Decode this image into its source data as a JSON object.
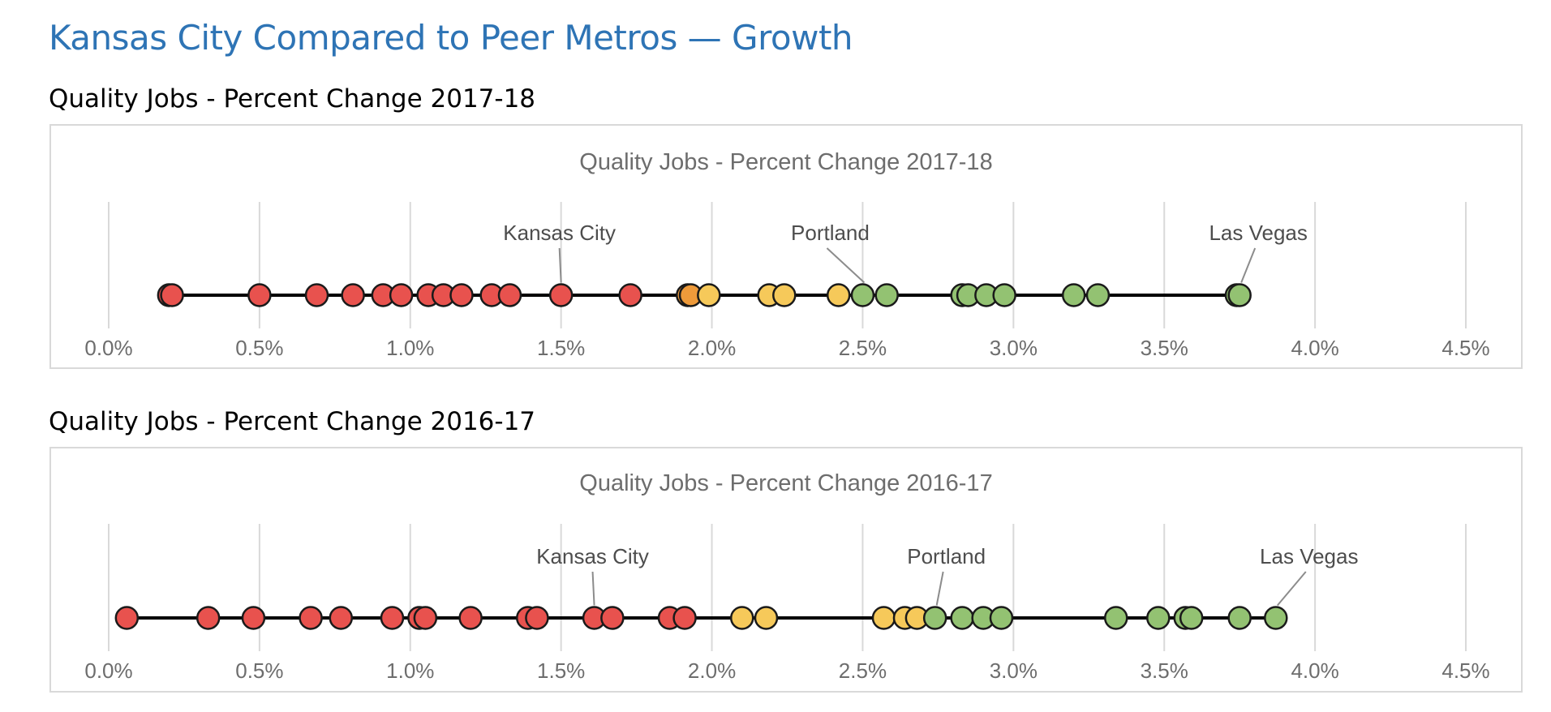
{
  "page": {
    "title": "Kansas City Compared to Peer Metros — Growth"
  },
  "charts": [
    {
      "heading": "Quality Jobs - Percent Change 2017-18"
    },
    {
      "heading": "Quality Jobs - Percent Change 2016-17"
    }
  ],
  "colors": {
    "red": "#E8524E",
    "orange": "#EE9A3A",
    "yellow": "#F6C95A",
    "green": "#93C272",
    "outline": "#1a1a1a",
    "gridline": "#d9d9d9",
    "axis_line": "#000000"
  },
  "chart_data": [
    {
      "type": "scatter",
      "title": "Quality Jobs - Percent Change 2017-18",
      "xlim": [
        0,
        4.5
      ],
      "x_ticks": [
        "0.0%",
        "0.5%",
        "1.0%",
        "1.5%",
        "2.0%",
        "2.5%",
        "3.0%",
        "3.5%",
        "4.0%",
        "4.5%"
      ],
      "grid": "vertical",
      "points": [
        {
          "x": 0.2,
          "color": "red"
        },
        {
          "x": 0.21,
          "color": "red"
        },
        {
          "x": 0.5,
          "color": "red"
        },
        {
          "x": 0.69,
          "color": "red"
        },
        {
          "x": 0.81,
          "color": "red"
        },
        {
          "x": 0.91,
          "color": "red"
        },
        {
          "x": 0.97,
          "color": "red"
        },
        {
          "x": 1.06,
          "color": "red"
        },
        {
          "x": 1.11,
          "color": "red"
        },
        {
          "x": 1.17,
          "color": "red"
        },
        {
          "x": 1.27,
          "color": "red"
        },
        {
          "x": 1.33,
          "color": "red"
        },
        {
          "x": 1.5,
          "color": "red",
          "label": "Kansas City"
        },
        {
          "x": 1.73,
          "color": "red"
        },
        {
          "x": 1.92,
          "color": "orange"
        },
        {
          "x": 1.93,
          "color": "orange"
        },
        {
          "x": 1.99,
          "color": "yellow"
        },
        {
          "x": 2.19,
          "color": "yellow"
        },
        {
          "x": 2.24,
          "color": "yellow"
        },
        {
          "x": 2.42,
          "color": "yellow"
        },
        {
          "x": 2.5,
          "color": "green",
          "label": "Portland"
        },
        {
          "x": 2.58,
          "color": "green"
        },
        {
          "x": 2.83,
          "color": "green"
        },
        {
          "x": 2.85,
          "color": "green"
        },
        {
          "x": 2.91,
          "color": "green"
        },
        {
          "x": 2.97,
          "color": "green"
        },
        {
          "x": 3.2,
          "color": "green"
        },
        {
          "x": 3.28,
          "color": "green"
        },
        {
          "x": 3.74,
          "color": "green"
        },
        {
          "x": 3.75,
          "color": "green",
          "label": "Las Vegas"
        }
      ]
    },
    {
      "type": "scatter",
      "title": "Quality Jobs - Percent Change 2016-17",
      "xlim": [
        0,
        4.5
      ],
      "x_ticks": [
        "0.0%",
        "0.5%",
        "1.0%",
        "1.5%",
        "2.0%",
        "2.5%",
        "3.0%",
        "3.5%",
        "4.0%",
        "4.5%"
      ],
      "grid": "vertical",
      "points": [
        {
          "x": 0.06,
          "color": "red"
        },
        {
          "x": 0.33,
          "color": "red"
        },
        {
          "x": 0.48,
          "color": "red"
        },
        {
          "x": 0.67,
          "color": "red"
        },
        {
          "x": 0.77,
          "color": "red"
        },
        {
          "x": 0.94,
          "color": "red"
        },
        {
          "x": 1.03,
          "color": "red"
        },
        {
          "x": 1.05,
          "color": "red"
        },
        {
          "x": 1.2,
          "color": "red"
        },
        {
          "x": 1.39,
          "color": "red"
        },
        {
          "x": 1.42,
          "color": "red"
        },
        {
          "x": 1.61,
          "color": "red",
          "label": "Kansas City"
        },
        {
          "x": 1.67,
          "color": "red"
        },
        {
          "x": 1.86,
          "color": "red"
        },
        {
          "x": 1.91,
          "color": "red"
        },
        {
          "x": 2.1,
          "color": "yellow"
        },
        {
          "x": 2.18,
          "color": "yellow"
        },
        {
          "x": 2.57,
          "color": "yellow"
        },
        {
          "x": 2.64,
          "color": "yellow"
        },
        {
          "x": 2.68,
          "color": "yellow"
        },
        {
          "x": 2.74,
          "color": "green",
          "label": "Portland"
        },
        {
          "x": 2.83,
          "color": "green"
        },
        {
          "x": 2.9,
          "color": "green"
        },
        {
          "x": 2.96,
          "color": "green"
        },
        {
          "x": 3.34,
          "color": "green"
        },
        {
          "x": 3.48,
          "color": "green"
        },
        {
          "x": 3.57,
          "color": "green"
        },
        {
          "x": 3.59,
          "color": "green"
        },
        {
          "x": 3.75,
          "color": "green"
        },
        {
          "x": 3.87,
          "color": "green",
          "label": "Las Vegas"
        }
      ]
    }
  ]
}
